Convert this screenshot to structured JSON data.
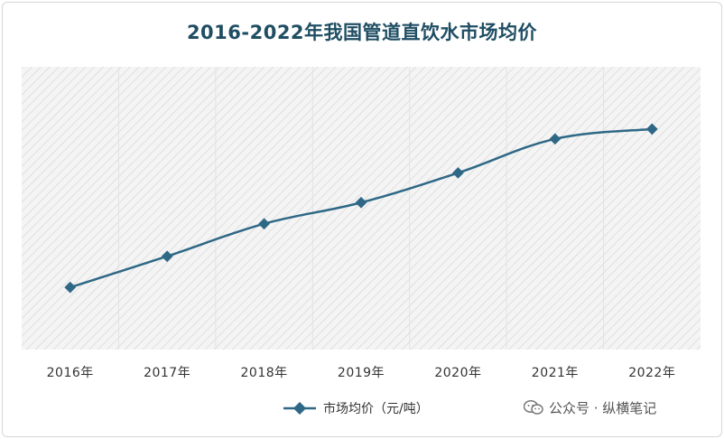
{
  "chart_data": {
    "type": "line",
    "title": "2016-2022年我国管道直饮水市场均价",
    "categories": [
      "2016年",
      "2017年",
      "2018年",
      "2019年",
      "2020年",
      "2021年",
      "2022年"
    ],
    "series": [
      {
        "name": "市场均价（元/吨）",
        "values": [
          22,
          33,
          44.5,
          52,
          62.5,
          74.5,
          78
        ]
      }
    ],
    "ylim": [
      0,
      100
    ],
    "grid": true,
    "legend": "bottom",
    "colors": {
      "line": "#2e6886",
      "title": "#1f4e63",
      "plot_bg": "#f2f2f2",
      "hatch": "#d4d4d4"
    }
  },
  "watermark": {
    "text": "公众号 · 纵横笔记",
    "icon": "wechat-icon"
  }
}
